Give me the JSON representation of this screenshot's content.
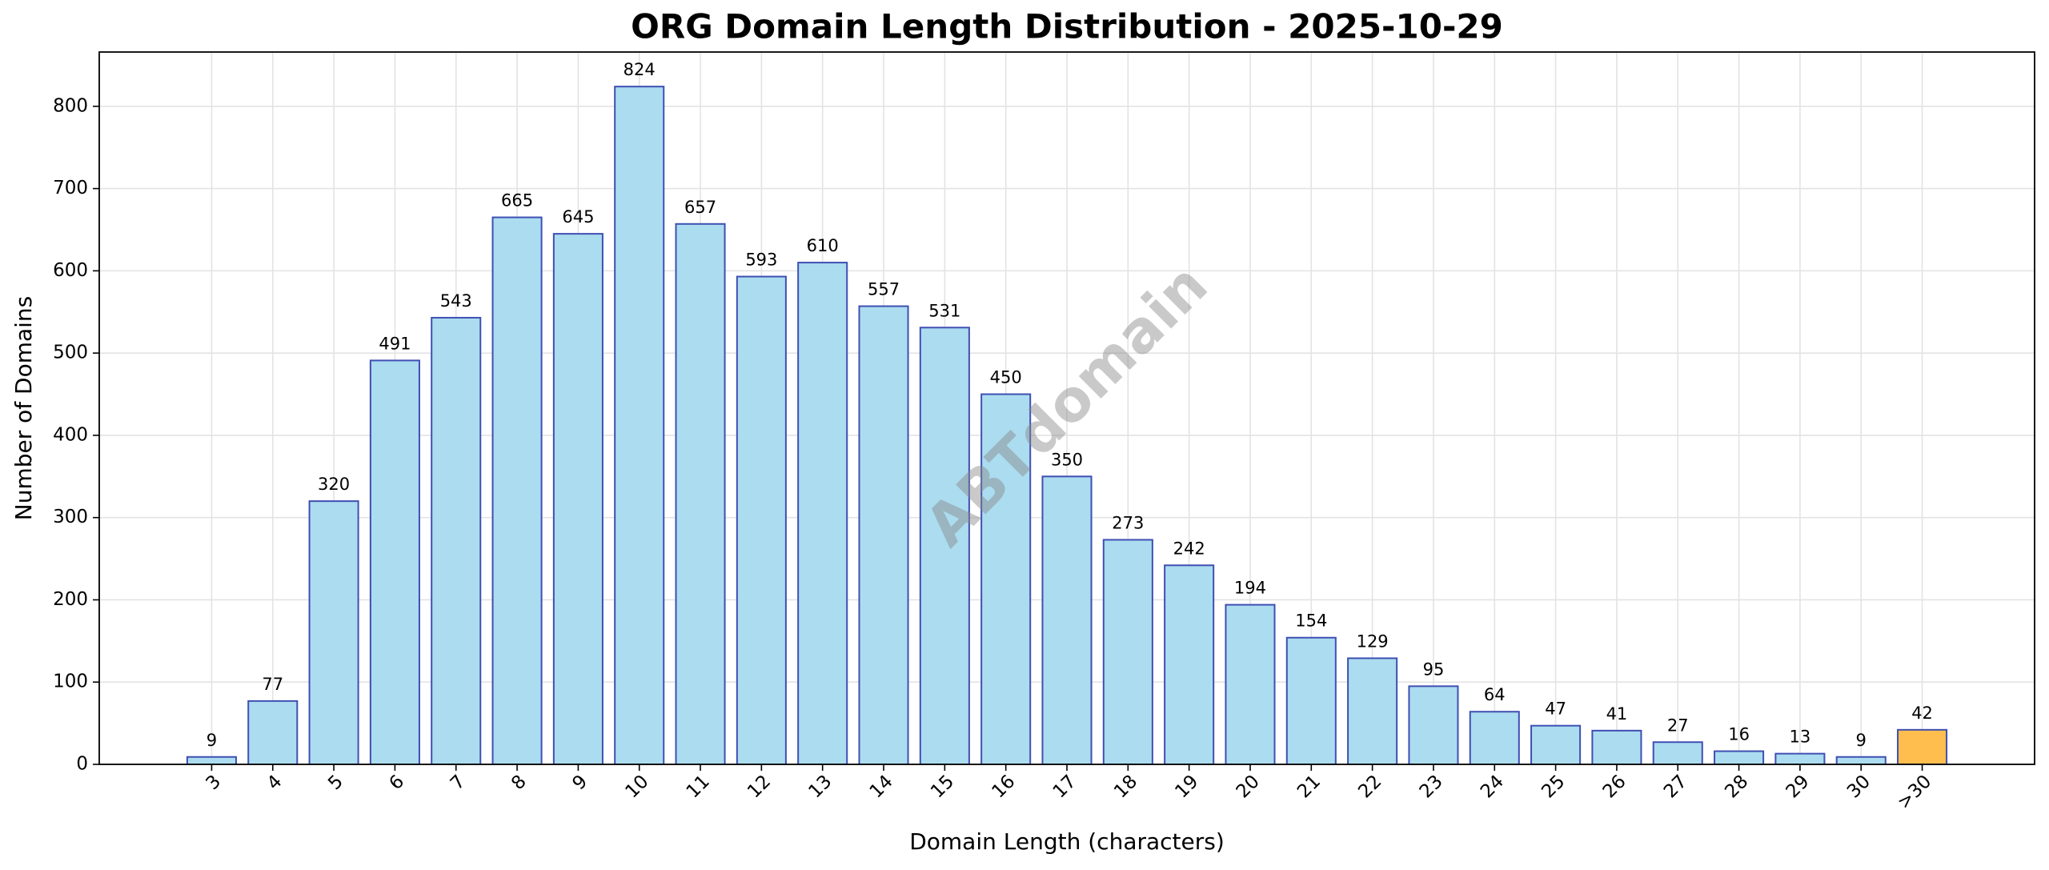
{
  "chart_data": {
    "type": "bar",
    "title": "ORG Domain Length Distribution - 2025-10-29",
    "x_label": "Domain Length (characters)",
    "y_label": "Number of Domains",
    "watermark": "ABTdomain",
    "categories": [
      "3",
      "4",
      "5",
      "6",
      "7",
      "8",
      "9",
      "10",
      "11",
      "12",
      "13",
      "14",
      "15",
      "16",
      "17",
      "18",
      "19",
      "20",
      "21",
      "22",
      "23",
      "24",
      "25",
      "26",
      "27",
      "28",
      "29",
      "30",
      ">30"
    ],
    "values": [
      9,
      77,
      320,
      491,
      543,
      665,
      645,
      824,
      657,
      593,
      610,
      557,
      531,
      450,
      350,
      273,
      242,
      194,
      154,
      129,
      95,
      64,
      47,
      41,
      27,
      16,
      13,
      9,
      42
    ],
    "colors": [
      "#abdcef",
      "#abdcef",
      "#abdcef",
      "#abdcef",
      "#abdcef",
      "#abdcef",
      "#abdcef",
      "#abdcef",
      "#abdcef",
      "#abdcef",
      "#abdcef",
      "#abdcef",
      "#abdcef",
      "#abdcef",
      "#abdcef",
      "#abdcef",
      "#abdcef",
      "#abdcef",
      "#abdcef",
      "#abdcef",
      "#abdcef",
      "#abdcef",
      "#abdcef",
      "#abdcef",
      "#abdcef",
      "#abdcef",
      "#abdcef",
      "#abdcef",
      "#ffbe4d"
    ],
    "edge_color": "#3f4fb3",
    "ylim": [
      0,
      866
    ],
    "yticks": [
      0,
      100,
      200,
      300,
      400,
      500,
      600,
      700,
      800
    ],
    "grid": true
  }
}
